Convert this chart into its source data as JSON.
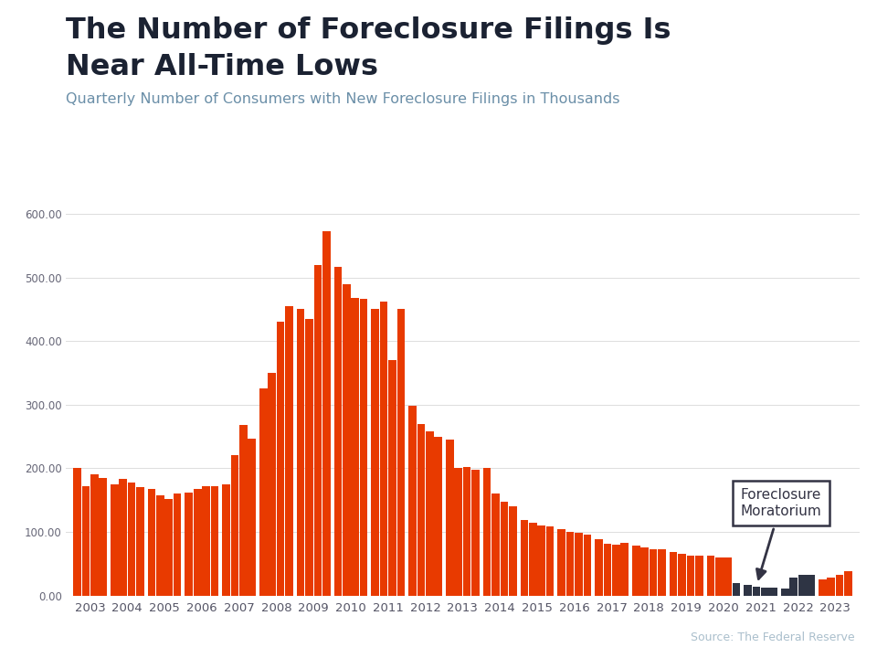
{
  "title_line1": "The Number of Foreclosure Filings Is",
  "title_line2": "Near All-Time Lows",
  "subtitle": "Quarterly Number of Consumers with New Foreclosure Filings in Thousands",
  "source": "Source: The Federal Reserve",
  "top_bar_color": "#29B8D8",
  "bar_color_red": "#E83A00",
  "bar_color_dark": "#2E3444",
  "background_color": "#FFFFFF",
  "title_color": "#1B2232",
  "subtitle_color": "#6B8FA8",
  "source_color": "#AABFCC",
  "ylim": [
    0,
    600
  ],
  "yticks": [
    0,
    100,
    200,
    300,
    400,
    500,
    600
  ],
  "years": [
    2003,
    2004,
    2005,
    2006,
    2007,
    2008,
    2009,
    2010,
    2011,
    2012,
    2013,
    2014,
    2015,
    2016,
    2017,
    2018,
    2019,
    2020,
    2021,
    2022,
    2023
  ],
  "values": [
    [
      200,
      172,
      190,
      185
    ],
    [
      175,
      183,
      178,
      170
    ],
    [
      168,
      157,
      152,
      160
    ],
    [
      162,
      168,
      172,
      172
    ],
    [
      175,
      220,
      268,
      247
    ],
    [
      325,
      350,
      430,
      455
    ],
    [
      450,
      435,
      520,
      573
    ],
    [
      517,
      490,
      468,
      467
    ],
    [
      450,
      462,
      370,
      450
    ],
    [
      298,
      270,
      258,
      250
    ],
    [
      245,
      200,
      202,
      198
    ],
    [
      200,
      160,
      148,
      140
    ],
    [
      118,
      114,
      110,
      108
    ],
    [
      104,
      100,
      98,
      95
    ],
    [
      88,
      82,
      80,
      83
    ],
    [
      78,
      75,
      73,
      72
    ],
    [
      68,
      65,
      63,
      62
    ],
    [
      63,
      60,
      60,
      20
    ],
    [
      16,
      14,
      12,
      12
    ],
    [
      11,
      28,
      32,
      32
    ],
    [
      25,
      28,
      32,
      38
    ]
  ],
  "dark_bar_indices": [
    71,
    72,
    73,
    74,
    75,
    76,
    77,
    78,
    79
  ],
  "annotation_text": "Foreclosure\nMoratorium",
  "moratorium_bar_idx": 18
}
